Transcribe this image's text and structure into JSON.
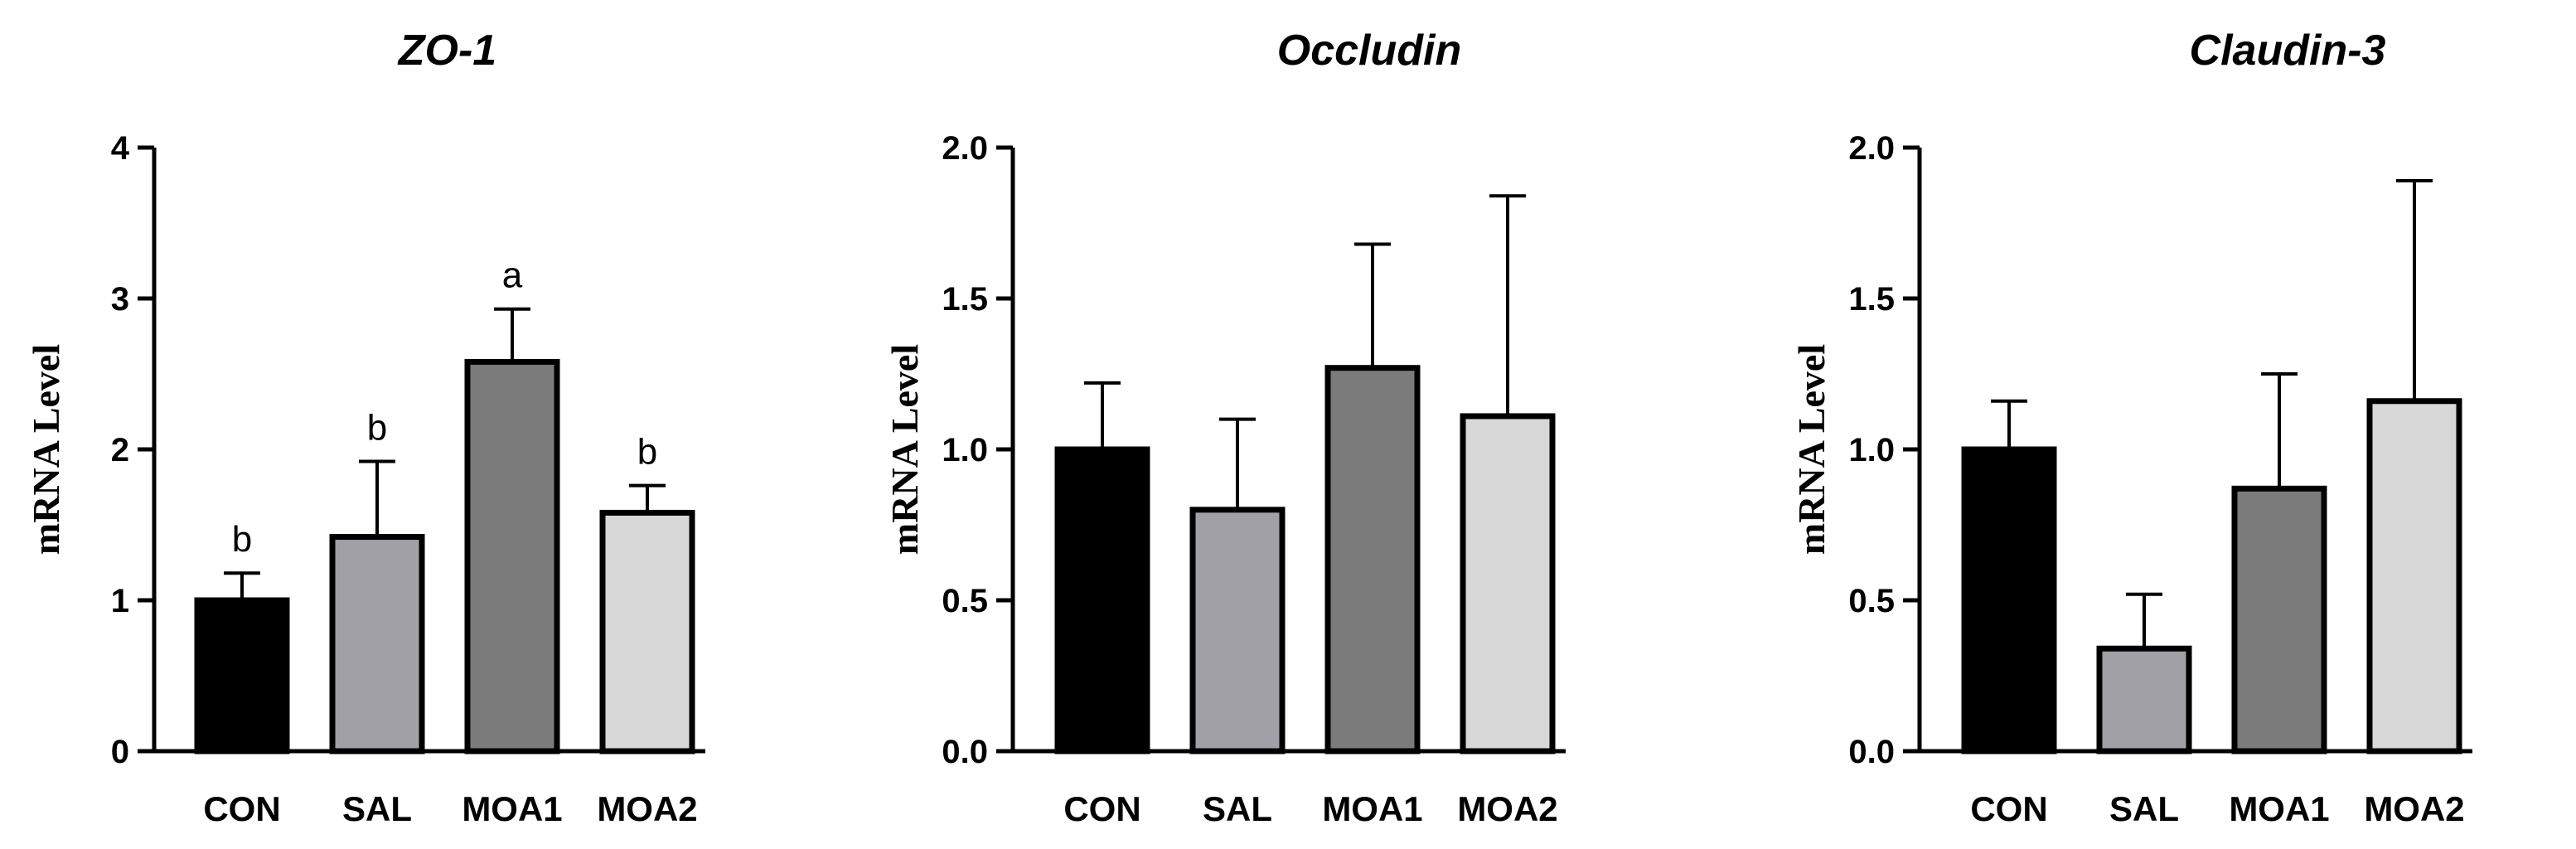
{
  "chart_data": [
    {
      "type": "bar",
      "title": "ZO-1",
      "ylabel": "mRNA Level",
      "categories": [
        "CON",
        "SAL",
        "MOA1",
        "MOA2"
      ],
      "values": [
        1.0,
        1.42,
        2.58,
        1.58
      ],
      "errors": [
        0.18,
        0.5,
        0.35,
        0.18
      ],
      "annotations": [
        "b",
        "b",
        "a",
        "b"
      ],
      "ylim": [
        0,
        4
      ],
      "yticks": [
        "0",
        "1",
        "2",
        "3",
        "4"
      ],
      "colors": [
        "#000000",
        "#a2a0a7",
        "#7b7b7b",
        "#d8d8d8"
      ]
    },
    {
      "type": "bar",
      "title": "Occludin",
      "ylabel": "mRNA Level",
      "categories": [
        "CON",
        "SAL",
        "MOA1",
        "MOA2"
      ],
      "values": [
        1.0,
        0.8,
        1.27,
        1.11
      ],
      "errors": [
        0.22,
        0.3,
        0.41,
        0.73
      ],
      "annotations": [
        "",
        "",
        "",
        ""
      ],
      "ylim": [
        0,
        2.0
      ],
      "yticks": [
        "0.0",
        "0.5",
        "1.0",
        "1.5",
        "2.0"
      ],
      "colors": [
        "#000000",
        "#a2a0a7",
        "#7b7b7b",
        "#d8d8d8"
      ]
    },
    {
      "type": "bar",
      "title": "Claudin-3",
      "ylabel": "mRNA Level",
      "categories": [
        "CON",
        "SAL",
        "MOA1",
        "MOA2"
      ],
      "values": [
        1.0,
        0.34,
        0.87,
        1.16
      ],
      "errors": [
        0.16,
        0.18,
        0.38,
        0.73
      ],
      "annotations": [
        "",
        "",
        "",
        ""
      ],
      "ylim": [
        0,
        2.0
      ],
      "yticks": [
        "0.0",
        "0.5",
        "1.0",
        "1.5",
        "2.0"
      ],
      "colors": [
        "#000000",
        "#a2a0a7",
        "#7b7b7b",
        "#d8d8d8"
      ]
    }
  ]
}
